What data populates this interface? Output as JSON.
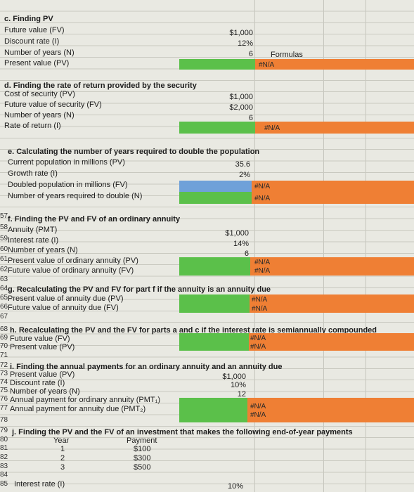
{
  "c": {
    "title": "c. Finding PV",
    "labels": [
      "Future value (FV)",
      "Discount rate (I)",
      "Number of years (N)",
      "Present value (PV)"
    ],
    "values": [
      "$1,000",
      "12%",
      "6"
    ],
    "formulas_label": "Formulas",
    "result": "#N/A"
  },
  "d": {
    "title": "d. Finding the rate of return provided by the security",
    "labels": [
      "Cost of security (PV)",
      "Future value of security (FV)",
      "Number of years (N)",
      "Rate of return (I)"
    ],
    "values": [
      "$1,000",
      "$2,000",
      "6"
    ],
    "result": "#N/A"
  },
  "e": {
    "title": "e. Calculating the number of years required to double the population",
    "labels": [
      "Current population in millions (PV)",
      "Growth rate (I)",
      "Doubled population in millions (FV)",
      "Number of years required to double (N)"
    ],
    "values": [
      "35.6",
      "2%"
    ],
    "results": [
      "#N/A",
      "#N/A"
    ]
  },
  "f": {
    "title": "f. Finding the PV and FV of an ordinary annuity",
    "labels": [
      "Annuity (PMT)",
      "Interest rate (I)",
      "Number of years (N)",
      "Present value of ordinary annuity (PV)",
      "Future value of ordinary annuity (FV)"
    ],
    "values": [
      "$1,000",
      "14%",
      "6"
    ],
    "results": [
      "#N/A",
      "#N/A"
    ]
  },
  "g": {
    "title": "g. Recalculating the PV and FV for part f if the annuity is an annuity due",
    "labels": [
      "Present value of annuity due (PV)",
      "Future value of annuity due (FV)"
    ],
    "results": [
      "#N/A",
      "#N/A"
    ]
  },
  "h": {
    "title": "h. Recalculating the PV and the FV for parts a and c if the interest rate is semiannually compounded",
    "labels": [
      "Future value (FV)",
      "Present value (PV)"
    ],
    "results": [
      "#N/A",
      "#N/A"
    ]
  },
  "i": {
    "title": "i. Finding the annual payments for an ordinary annuity and an annuity due",
    "labels": [
      "Present value (PV)",
      "Discount rate (I)",
      "Number of years (N)",
      "Annual payment for ordinary annuity (PMT₁)",
      "Annual payment for annuity due (PMT₂)"
    ],
    "values": [
      "$1,000",
      "10%",
      "12"
    ],
    "results": [
      "#N/A",
      "#N/A"
    ]
  },
  "j": {
    "title": "j. Finding the PV and the FV of an investment that makes the following end-of-year payments",
    "headers": [
      "Year",
      "Payment"
    ],
    "rows": [
      [
        "1",
        "$100"
      ],
      [
        "2",
        "$300"
      ],
      [
        "3",
        "$500"
      ]
    ],
    "interest_label": "Interest rate (I)",
    "interest_value": "10%"
  },
  "row_numbers": [
    "57",
    "58",
    "59",
    "60",
    "61",
    "62",
    "63",
    "64",
    "65",
    "66",
    "67",
    "68",
    "69",
    "70",
    "71",
    "72",
    "73",
    "74",
    "75",
    "76",
    "77",
    "78",
    "79",
    "80",
    "81",
    "82",
    "83",
    "84",
    "85"
  ],
  "colors": {
    "green": "#5bc04a",
    "orange": "#ef7f34",
    "blue": "#6fa1d9"
  }
}
